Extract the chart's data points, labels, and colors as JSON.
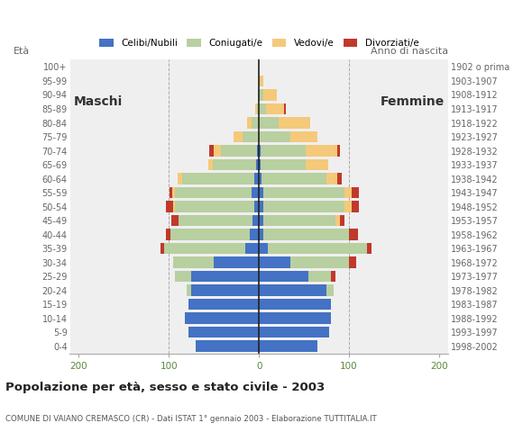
{
  "age_groups": [
    "0-4",
    "5-9",
    "10-14",
    "15-19",
    "20-24",
    "25-29",
    "30-34",
    "35-39",
    "40-44",
    "45-49",
    "50-54",
    "55-59",
    "60-64",
    "65-69",
    "70-74",
    "75-79",
    "80-84",
    "85-89",
    "90-94",
    "95-99",
    "100+"
  ],
  "birth_years": [
    "1998-2002",
    "1993-1997",
    "1988-1992",
    "1983-1987",
    "1978-1982",
    "1973-1977",
    "1968-1972",
    "1963-1967",
    "1958-1962",
    "1953-1957",
    "1948-1952",
    "1943-1947",
    "1938-1942",
    "1933-1937",
    "1928-1932",
    "1923-1927",
    "1918-1922",
    "1913-1917",
    "1908-1912",
    "1903-1907",
    "1902 o prima"
  ],
  "males_celibe": [
    70,
    78,
    82,
    78,
    75,
    75,
    50,
    15,
    10,
    7,
    5,
    8,
    5,
    3,
    2,
    0,
    0,
    0,
    0,
    0,
    0
  ],
  "males_coniugato": [
    0,
    0,
    0,
    0,
    5,
    18,
    45,
    90,
    88,
    82,
    88,
    85,
    80,
    48,
    40,
    18,
    8,
    2,
    1,
    0,
    0
  ],
  "males_vedovo": [
    0,
    0,
    0,
    0,
    0,
    0,
    0,
    0,
    0,
    0,
    2,
    3,
    5,
    5,
    8,
    10,
    5,
    2,
    0,
    0,
    0
  ],
  "males_divorziato": [
    0,
    0,
    0,
    0,
    0,
    0,
    0,
    4,
    5,
    8,
    8,
    3,
    0,
    0,
    5,
    0,
    0,
    0,
    0,
    0,
    0
  ],
  "females_nubile": [
    65,
    78,
    80,
    80,
    75,
    55,
    35,
    10,
    5,
    5,
    5,
    5,
    3,
    2,
    2,
    0,
    0,
    0,
    0,
    0,
    0
  ],
  "females_coniugata": [
    0,
    0,
    0,
    0,
    8,
    25,
    65,
    110,
    95,
    80,
    90,
    90,
    72,
    50,
    50,
    35,
    22,
    8,
    5,
    0,
    0
  ],
  "females_vedova": [
    0,
    0,
    0,
    0,
    0,
    0,
    0,
    0,
    0,
    5,
    8,
    8,
    12,
    25,
    35,
    30,
    35,
    20,
    15,
    5,
    0
  ],
  "females_divorziata": [
    0,
    0,
    0,
    0,
    0,
    5,
    8,
    5,
    10,
    5,
    8,
    8,
    5,
    0,
    3,
    0,
    0,
    2,
    0,
    0,
    0
  ],
  "color_celibe": "#4472c4",
  "color_coniugato": "#b8cfa0",
  "color_vedovo": "#f5c97a",
  "color_divorziato": "#c0392b",
  "xlim": 210,
  "title": "Popolazione per età, sesso e stato civile - 2003",
  "subtitle": "COMUNE DI VAIANO CREMASCO (CR) - Dati ISTAT 1° gennaio 2003 - Elaborazione TUTTITALIA.IT",
  "label_eta": "Età",
  "label_anno": "Anno di nascita",
  "label_maschi": "Maschi",
  "label_femmine": "Femmine",
  "legend_labels": [
    "Celibi/Nubili",
    "Coniugati/e",
    "Vedovi/e",
    "Divorziati/e"
  ],
  "bg_color": "#ffffff",
  "plot_bg": "#efefef"
}
